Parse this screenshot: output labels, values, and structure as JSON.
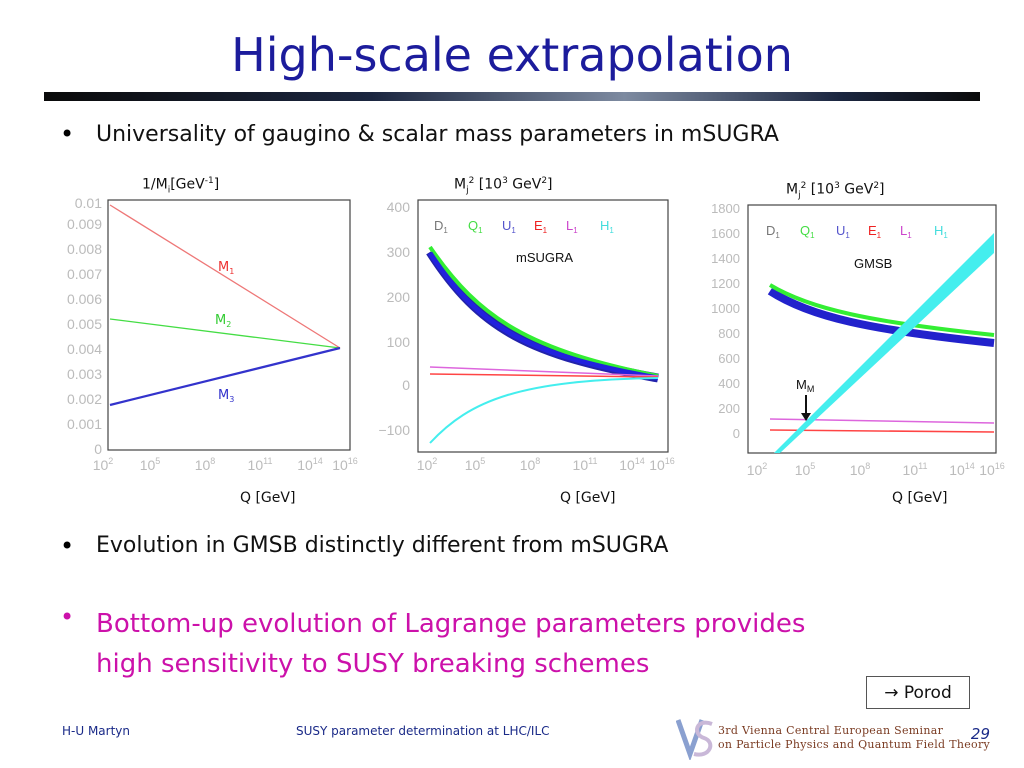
{
  "slide": {
    "title": "High-scale extrapolation",
    "bullets": [
      "Universality of gaugino & scalar mass parameters in mSUGRA",
      "Evolution in GMSB distinctly different from mSUGRA"
    ],
    "highlight": [
      "Bottom-up evolution of Lagrange parameters provides",
      "high sensitivity to SUSY breaking schemes"
    ],
    "reference_box": "→ Porod",
    "footer": {
      "author": "H-U Martyn",
      "talk": "SUSY parameter determination at LHC/ILC",
      "seminar_line1": "3rd Vienna Central European Seminar",
      "seminar_line2": "on Particle Physics and Quantum Field Theory",
      "page": "29"
    },
    "colors": {
      "title": "#1c1c9c",
      "highlight": "#cc11aa",
      "footer": "#1a2a88"
    }
  },
  "chart_data": [
    {
      "type": "line",
      "ylabel": "1/Mi[GeV-1]",
      "xlabel": "Q [GeV]",
      "x_scale": "log",
      "xticks": [
        "10^2",
        "10^5",
        "10^8",
        "10^11",
        "10^14",
        "10^16"
      ],
      "yticks": [
        "0",
        "0.001",
        "0.002",
        "0.003",
        "0.004",
        "0.005",
        "0.006",
        "0.007",
        "0.008",
        "0.009",
        "0.01"
      ],
      "ylim": [
        0,
        0.01
      ],
      "series": [
        {
          "name": "M1",
          "color": "#ee6666",
          "x": [
            100,
            1e+16
          ],
          "y": [
            0.0099,
            0.004
          ]
        },
        {
          "name": "M2",
          "color": "#33dd33",
          "x": [
            100,
            1e+16
          ],
          "y": [
            0.0053,
            0.004
          ]
        },
        {
          "name": "M3",
          "color": "#3333cc",
          "x": [
            100,
            1e+16
          ],
          "y": [
            0.0018,
            0.004
          ]
        }
      ]
    },
    {
      "type": "line",
      "ylabel": "Mj2 [103 GeV2]",
      "xlabel": "Q [GeV]",
      "annotation": "mSUGRA",
      "legend": [
        "D1",
        "Q1",
        "U1",
        "E1",
        "L1",
        "H1"
      ],
      "x_scale": "log",
      "xticks": [
        "10^2",
        "10^5",
        "10^8",
        "10^11",
        "10^14",
        "10^16"
      ],
      "yticks": [
        "−100",
        "0",
        "100",
        "200",
        "300",
        "400"
      ],
      "ylim": [
        -130,
        400
      ],
      "series": [
        {
          "name": "Q1",
          "color": "#33ee33",
          "x": [
            100,
            10000.0,
            1000000.0,
            100000000.0,
            10000000000.0,
            1000000000000.0,
            100000000000000.0,
            1e+16
          ],
          "y": [
            300,
            210,
            140,
            90,
            55,
            32,
            20,
            15
          ]
        },
        {
          "name": "U1",
          "color": "#2222cc",
          "x": [
            100,
            10000.0,
            1000000.0,
            100000000.0,
            10000000000.0,
            1000000000000.0,
            100000000000000.0,
            1e+16
          ],
          "y": [
            285,
            195,
            128,
            82,
            50,
            30,
            19,
            15
          ]
        },
        {
          "name": "L1",
          "color": "#dd66dd",
          "x": [
            100,
            1e+16
          ],
          "y": [
            38,
            18
          ]
        },
        {
          "name": "E1",
          "color": "#ff3333",
          "x": [
            100,
            1e+16
          ],
          "y": [
            20,
            15
          ]
        },
        {
          "name": "H1",
          "color": "#44eeee",
          "x": [
            100,
            1000.0,
            10000.0,
            1000000.0,
            100000000.0,
            10000000000.0,
            1000000000000.0,
            100000000000000.0,
            1e+16
          ],
          "y": [
            -125,
            -80,
            -50,
            -15,
            2,
            10,
            12,
            14,
            15
          ]
        }
      ]
    },
    {
      "type": "line",
      "ylabel": "Mj2 [103 GeV2]",
      "xlabel": "Q [GeV]",
      "annotation": "GMSB",
      "marker_label": "MM",
      "legend": [
        "D1",
        "Q1",
        "U1",
        "E1",
        "L1",
        "H1"
      ],
      "x_scale": "log",
      "xticks": [
        "10^2",
        "10^5",
        "10^8",
        "10^11",
        "10^14",
        "10^16"
      ],
      "yticks": [
        "0",
        "200",
        "400",
        "600",
        "800",
        "1000",
        "1200",
        "1400",
        "1600",
        "1800"
      ],
      "ylim": [
        -80,
        1800
      ],
      "series": [
        {
          "name": "Q1",
          "color": "#33ee33",
          "x": [
            100,
            10000.0,
            1000000.0,
            100000000.0,
            10000000000.0,
            1000000000000.0,
            100000000000000.0,
            1e+16
          ],
          "y": [
            1180,
            1020,
            930,
            870,
            830,
            805,
            785,
            770
          ]
        },
        {
          "name": "U1",
          "color": "#2222cc",
          "x": [
            100,
            10000.0,
            1000000.0,
            100000000.0,
            10000000000.0,
            1000000000000.0,
            100000000000000.0,
            1e+16
          ],
          "y": [
            1120,
            960,
            870,
            810,
            770,
            745,
            725,
            710
          ]
        },
        {
          "name": "L1",
          "color": "#dd66dd",
          "x": [
            100,
            1e+16
          ],
          "y": [
            125,
            95
          ]
        },
        {
          "name": "E1",
          "color": "#ff3333",
          "x": [
            100,
            1e+16
          ],
          "y": [
            30,
            25
          ]
        },
        {
          "name": "H1",
          "color": "#44eeee",
          "x": [
            100,
            1e+16
          ],
          "y": [
            -80,
            1600
          ]
        }
      ]
    }
  ]
}
